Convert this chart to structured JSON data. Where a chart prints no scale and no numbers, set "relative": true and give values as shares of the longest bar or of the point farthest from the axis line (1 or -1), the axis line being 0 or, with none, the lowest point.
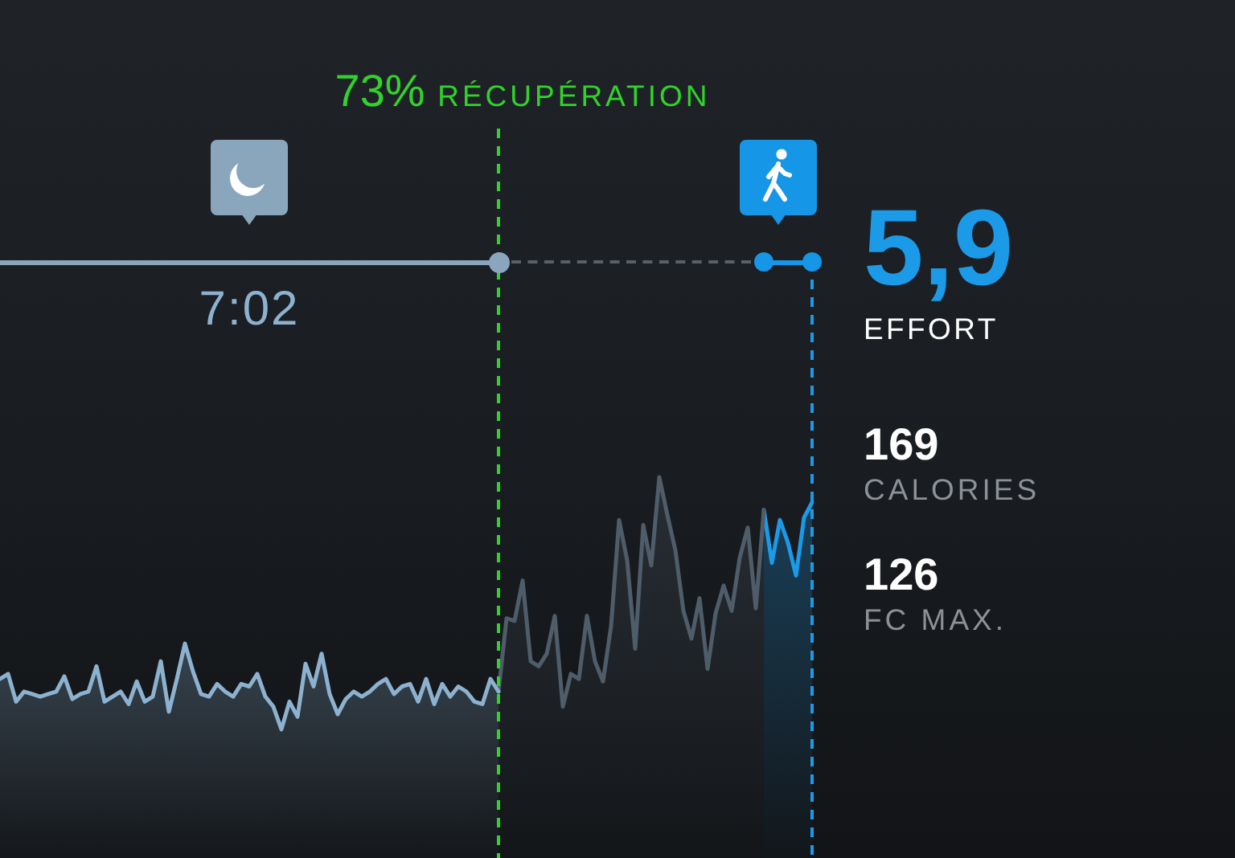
{
  "chart_data": {
    "type": "area",
    "relative": true,
    "tick_labels": false,
    "categories": [
      null,
      null,
      null,
      null,
      null,
      null,
      null,
      null,
      null,
      null,
      null,
      null,
      null,
      null,
      null,
      null,
      null,
      null,
      null,
      null,
      null,
      null,
      null,
      null,
      null,
      null,
      null,
      null,
      null,
      null,
      null,
      null,
      null,
      null,
      null,
      null,
      null,
      null,
      null,
      null,
      null,
      null,
      null,
      null,
      null,
      null,
      null,
      null,
      null,
      null,
      null,
      null,
      null,
      null,
      null,
      null,
      null,
      null,
      null,
      null,
      null,
      null,
      null,
      null,
      null,
      null,
      null,
      null,
      null,
      null,
      null,
      null,
      null,
      null,
      null,
      null,
      null,
      null,
      null,
      null,
      null,
      null,
      null,
      null,
      null,
      null,
      null,
      null,
      null,
      null,
      null,
      null,
      null,
      null,
      null,
      null,
      null,
      null,
      null,
      null,
      null,
      null
    ],
    "series": [
      {
        "color": "#8cb2cf",
        "values": [
          0.2,
          0.22,
          0.11,
          0.15,
          0.14,
          0.13,
          0.14,
          0.15,
          0.21,
          0.12,
          0.14,
          0.15,
          0.25,
          0.11,
          0.13,
          0.15,
          0.1,
          0.19,
          0.11,
          0.13,
          0.27,
          0.07,
          0.2,
          0.34,
          0.23,
          0.14,
          0.13,
          0.18,
          0.15,
          0.13,
          0.18,
          0.17,
          0.22,
          0.13,
          0.09,
          0,
          0.11,
          0.05,
          0.26,
          0.17,
          0.3,
          0.14,
          0.06,
          0.12,
          0.15,
          0.13,
          0.15,
          0.18,
          0.2,
          0.14,
          0.17,
          0.18,
          0.11,
          0.2,
          0.1,
          0.18,
          0.13,
          0.17,
          0.15,
          0.11,
          0.1,
          0.2,
          0.15,
          null,
          null,
          null,
          null,
          null,
          null,
          null,
          null,
          null,
          null,
          null,
          null,
          null,
          null,
          null,
          null,
          null,
          null,
          null,
          null,
          null,
          null,
          null,
          null,
          null,
          null,
          null,
          null,
          null,
          null,
          null,
          null,
          null,
          null,
          null,
          null,
          null,
          null,
          null
        ]
      },
      {
        "color": "#4f5d6a",
        "values": [
          null,
          null,
          null,
          null,
          null,
          null,
          null,
          null,
          null,
          null,
          null,
          null,
          null,
          null,
          null,
          null,
          null,
          null,
          null,
          null,
          null,
          null,
          null,
          null,
          null,
          null,
          null,
          null,
          null,
          null,
          null,
          null,
          null,
          null,
          null,
          null,
          null,
          null,
          null,
          null,
          null,
          null,
          null,
          null,
          null,
          null,
          null,
          null,
          null,
          null,
          null,
          null,
          null,
          null,
          null,
          null,
          null,
          null,
          null,
          null,
          null,
          null,
          0.15,
          0.44,
          0.43,
          0.59,
          0.27,
          0.25,
          0.3,
          0.45,
          0.09,
          0.22,
          0.2,
          0.45,
          0.27,
          0.19,
          0.41,
          0.83,
          0.67,
          0.32,
          0.81,
          0.65,
          1,
          0.85,
          0.71,
          0.47,
          0.36,
          0.52,
          0.24,
          0.46,
          0.57,
          0.47,
          0.68,
          0.8,
          0.48,
          0.87,
          null,
          null,
          null,
          null,
          null,
          null
        ]
      },
      {
        "color": "#1b9ae8",
        "values": [
          null,
          null,
          null,
          null,
          null,
          null,
          null,
          null,
          null,
          null,
          null,
          null,
          null,
          null,
          null,
          null,
          null,
          null,
          null,
          null,
          null,
          null,
          null,
          null,
          null,
          null,
          null,
          null,
          null,
          null,
          null,
          null,
          null,
          null,
          null,
          null,
          null,
          null,
          null,
          null,
          null,
          null,
          null,
          null,
          null,
          null,
          null,
          null,
          null,
          null,
          null,
          null,
          null,
          null,
          null,
          null,
          null,
          null,
          null,
          null,
          null,
          null,
          null,
          null,
          null,
          null,
          null,
          null,
          null,
          null,
          null,
          null,
          null,
          null,
          null,
          null,
          null,
          null,
          null,
          null,
          null,
          null,
          null,
          null,
          null,
          null,
          null,
          null,
          null,
          null,
          null,
          null,
          null,
          null,
          null,
          0.87,
          0.66,
          0.83,
          0.74,
          0.61,
          0.84,
          0.9
        ]
      }
    ],
    "annotations": [
      "73% RÉCUPÉRATION",
      "7:02",
      "5,9",
      "EFFORT",
      "169",
      "CALORIES",
      "126",
      "FC MAX."
    ]
  }
}
